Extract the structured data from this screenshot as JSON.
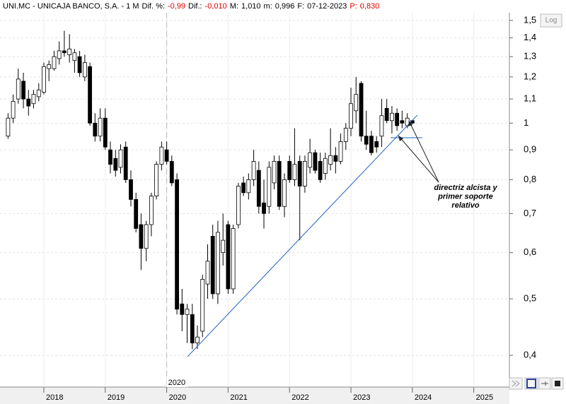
{
  "chart_data": {
    "type": "candlestick",
    "title": "UNI.MC - UNICAJA BANCO, S.A. - 1 M",
    "stats": [
      {
        "label": "Dif. %:",
        "value": "-0,99",
        "color": "#e00000"
      },
      {
        "label": "Dif.:",
        "value": "-0,010",
        "color": "#e00000"
      },
      {
        "label": "M:",
        "value": "1,010",
        "color": "#000000"
      },
      {
        "label": "m:",
        "value": "0,996",
        "color": "#000000"
      },
      {
        "label": "F:",
        "value": "07-12-2023",
        "color": "#000000"
      },
      {
        "label": "P:",
        "value": "0,830",
        "color": "#e00000"
      }
    ],
    "log_button": "Log",
    "log_scale": true,
    "grid": true,
    "up_color": "#ffffff",
    "down_color": "#000000",
    "x": [
      2017.417,
      2017.5,
      2017.583,
      2017.667,
      2017.75,
      2017.833,
      2017.917,
      2018.0,
      2018.083,
      2018.167,
      2018.25,
      2018.333,
      2018.417,
      2018.5,
      2018.583,
      2018.667,
      2018.75,
      2018.833,
      2018.917,
      2019.0,
      2019.083,
      2019.167,
      2019.25,
      2019.333,
      2019.417,
      2019.5,
      2019.583,
      2019.667,
      2019.75,
      2019.833,
      2019.917,
      2020.0,
      2020.083,
      2020.167,
      2020.25,
      2020.333,
      2020.417,
      2020.5,
      2020.583,
      2020.667,
      2020.75,
      2020.833,
      2020.917,
      2021.0,
      2021.083,
      2021.167,
      2021.25,
      2021.333,
      2021.417,
      2021.5,
      2021.583,
      2021.667,
      2021.75,
      2021.833,
      2021.917,
      2022.0,
      2022.083,
      2022.167,
      2022.25,
      2022.333,
      2022.417,
      2022.5,
      2022.583,
      2022.667,
      2022.75,
      2022.833,
      2022.917,
      2023.0,
      2023.083,
      2023.167,
      2023.25,
      2023.333,
      2023.417,
      2023.5,
      2023.583,
      2023.667,
      2023.75,
      2023.833,
      2023.917,
      2024.0
    ],
    "open": [
      0.95,
      1.02,
      1.1,
      1.18,
      1.1,
      1.08,
      1.11,
      1.13,
      1.24,
      1.24,
      1.29,
      1.33,
      1.31,
      1.28,
      1.3,
      1.2,
      1.25,
      1.0,
      0.95,
      1.02,
      0.9,
      0.87,
      0.84,
      0.91,
      0.8,
      0.74,
      0.67,
      0.61,
      0.67,
      0.75,
      0.85,
      0.9,
      0.86,
      0.8,
      0.49,
      0.47,
      0.47,
      0.42,
      0.44,
      0.53,
      0.64,
      0.51,
      0.6,
      0.67,
      0.52,
      0.67,
      0.79,
      0.76,
      0.8,
      0.83,
      0.73,
      0.72,
      0.79,
      0.86,
      0.72,
      0.86,
      0.8,
      0.86,
      0.78,
      0.84,
      0.89,
      0.86,
      0.82,
      0.85,
      0.88,
      0.86,
      0.93,
      0.98,
      1.05,
      1.17,
      0.95,
      0.95,
      0.93,
      0.95,
      1.06,
      1.01,
      1.04,
      1.01,
      0.99,
      1.01
    ],
    "high": [
      1.04,
      1.12,
      1.24,
      1.22,
      1.14,
      1.14,
      1.17,
      1.27,
      1.28,
      1.33,
      1.38,
      1.44,
      1.42,
      1.34,
      1.33,
      1.31,
      1.27,
      1.04,
      1.06,
      1.06,
      0.93,
      0.9,
      0.92,
      0.93,
      0.83,
      0.76,
      0.7,
      0.68,
      0.76,
      0.86,
      0.93,
      0.93,
      0.88,
      0.82,
      0.52,
      0.49,
      0.49,
      0.45,
      0.55,
      0.62,
      0.67,
      0.68,
      0.7,
      0.68,
      0.67,
      0.79,
      0.81,
      0.82,
      0.9,
      0.86,
      0.8,
      0.86,
      0.88,
      0.88,
      0.82,
      0.88,
      0.98,
      0.88,
      0.88,
      0.94,
      0.9,
      0.89,
      0.89,
      0.98,
      0.91,
      0.96,
      1.0,
      1.15,
      1.2,
      1.18,
      1.05,
      0.97,
      0.95,
      1.1,
      1.1,
      1.07,
      1.06,
      1.05,
      1.04,
      1.01
    ],
    "low": [
      0.94,
      1.0,
      1.08,
      1.06,
      1.03,
      1.06,
      1.09,
      1.12,
      1.18,
      1.23,
      1.26,
      1.3,
      1.27,
      1.22,
      1.2,
      1.18,
      0.99,
      0.93,
      0.93,
      0.9,
      0.82,
      0.81,
      0.82,
      0.79,
      0.72,
      0.65,
      0.56,
      0.58,
      0.64,
      0.74,
      0.83,
      0.85,
      0.78,
      0.47,
      0.44,
      0.42,
      0.41,
      0.41,
      0.43,
      0.5,
      0.5,
      0.49,
      0.57,
      0.51,
      0.51,
      0.66,
      0.75,
      0.74,
      0.78,
      0.7,
      0.66,
      0.7,
      0.77,
      0.71,
      0.69,
      0.79,
      0.78,
      0.63,
      0.76,
      0.82,
      0.82,
      0.79,
      0.8,
      0.83,
      0.82,
      0.85,
      0.9,
      0.95,
      1.0,
      0.93,
      0.9,
      0.88,
      0.89,
      0.91,
      1.0,
      0.96,
      0.97,
      0.98,
      0.98,
      0.996
    ],
    "close": [
      1.02,
      1.09,
      1.19,
      1.1,
      1.07,
      1.12,
      1.14,
      1.25,
      1.26,
      1.3,
      1.33,
      1.32,
      1.34,
      1.32,
      1.22,
      1.27,
      1.0,
      0.95,
      1.02,
      0.91,
      0.85,
      0.83,
      0.9,
      0.8,
      0.74,
      0.66,
      0.61,
      0.67,
      0.75,
      0.85,
      0.91,
      0.86,
      0.79,
      0.48,
      0.47,
      0.48,
      0.42,
      0.43,
      0.54,
      0.58,
      0.51,
      0.65,
      0.63,
      0.52,
      0.66,
      0.78,
      0.76,
      0.8,
      0.86,
      0.72,
      0.7,
      0.84,
      0.86,
      0.72,
      0.8,
      0.8,
      0.85,
      0.78,
      0.86,
      0.89,
      0.83,
      0.8,
      0.87,
      0.88,
      0.86,
      0.93,
      0.98,
      1.08,
      1.12,
      0.95,
      0.92,
      0.89,
      0.91,
      1.03,
      1.01,
      1.04,
      0.99,
      1.0,
      1.02,
      1.0
    ],
    "xlim": [
      2017.286,
      2025.58
    ],
    "xticks": [
      2018,
      2019,
      2020,
      2021,
      2022,
      2023,
      2024,
      2025
    ],
    "year_marker": 2020,
    "ylim": [
      0.353,
      1.546
    ],
    "yticks": [
      {
        "value": 0.4,
        "label": "0,4"
      },
      {
        "value": 0.5,
        "label": "0,5"
      },
      {
        "value": 0.6,
        "label": "0,6"
      },
      {
        "value": 0.7,
        "label": "0,7"
      },
      {
        "value": 0.8,
        "label": "0,8"
      },
      {
        "value": 0.9,
        "label": "0,9"
      },
      1,
      {
        "value": 1.1,
        "label": "1,1"
      },
      {
        "value": 1.2,
        "label": "1,2"
      },
      {
        "value": 1.3,
        "label": "1,3"
      },
      {
        "value": 1.4,
        "label": "1,4"
      },
      {
        "value": 1.5,
        "label": "1,5"
      }
    ],
    "trendline": {
      "x": [
        2020.34,
        2024.08
      ],
      "y": [
        0.398,
        1.032
      ],
      "color": "#1f5fbf"
    },
    "support_line": {
      "x": [
        2023.645,
        2024.16
      ],
      "y": [
        0.944,
        0.944
      ],
      "color": "#1f5fbf"
    },
    "annotation": {
      "lines": [
        "directriz alcista y",
        "primer soporte",
        "relativo"
      ]
    }
  }
}
